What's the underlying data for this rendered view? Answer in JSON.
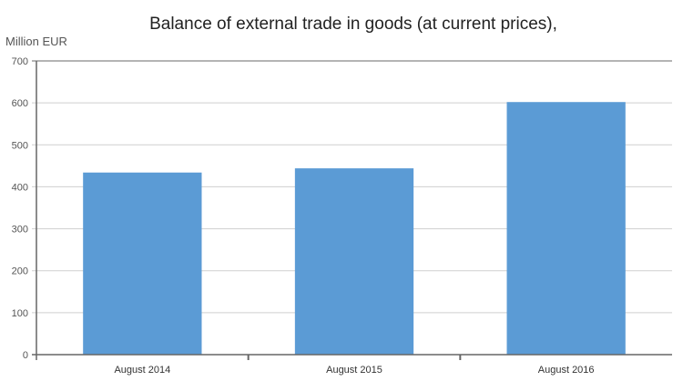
{
  "chart_data": {
    "type": "bar",
    "title": "Balance of external trade in goods (at current prices),",
    "ylabel": "Million EUR",
    "xlabel": "",
    "categories": [
      "August 2014",
      "August 2015",
      "August 2016"
    ],
    "values": [
      434,
      444,
      602
    ],
    "ylim": [
      0,
      700
    ],
    "yticks": [
      0,
      100,
      200,
      300,
      400,
      500,
      600,
      700
    ],
    "bar_color": "#5b9bd5",
    "grid": true,
    "legend": "none"
  }
}
